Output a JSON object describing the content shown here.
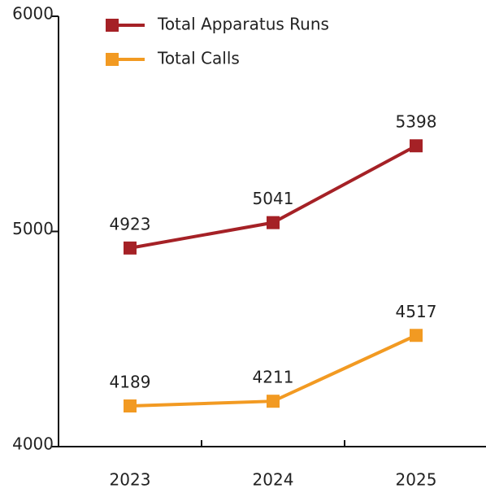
{
  "chart_data": {
    "type": "line",
    "categories": [
      "2023",
      "2024",
      "2025"
    ],
    "series": [
      {
        "name": "Total Apparatus Runs",
        "color": "#a52126",
        "values": [
          4923,
          5041,
          5398
        ]
      },
      {
        "name": "Total Calls",
        "color": "#f29a22",
        "values": [
          4189,
          4211,
          4517
        ]
      }
    ],
    "ylim": [
      4000,
      6000
    ],
    "yticks": [
      4000,
      5000,
      6000
    ],
    "legend": "upper left",
    "data_labels": true
  }
}
